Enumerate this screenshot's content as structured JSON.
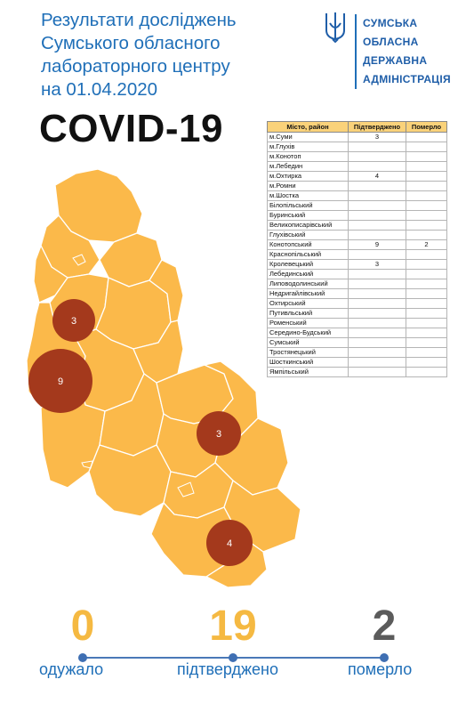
{
  "header": {
    "title_lines": [
      "Результати досліджень",
      "Сумського обласного",
      "лабораторного центру",
      "на 01.04.2020"
    ],
    "headline": "COVID-19"
  },
  "org": {
    "lines": [
      "СУМСЬКА",
      "ОБЛАСНА",
      "ДЕРЖАВНА",
      "АДМІНІСТРАЦІЯ"
    ],
    "emblem_icon": "trident-icon"
  },
  "map": {
    "fill_color": "#fbb94a",
    "marker_color": "#a4391c",
    "markers": [
      {
        "label": "3"
      },
      {
        "label": "9"
      },
      {
        "label": "3"
      },
      {
        "label": "4"
      }
    ]
  },
  "table": {
    "headers": [
      "Місто, район",
      "Підтверджено",
      "Померло"
    ],
    "rows": [
      {
        "name": "м.Суми",
        "confirmed": "3",
        "died": ""
      },
      {
        "name": "м.Глухів",
        "confirmed": "",
        "died": ""
      },
      {
        "name": "м.Конотоп",
        "confirmed": "",
        "died": ""
      },
      {
        "name": "м.Лебедин",
        "confirmed": "",
        "died": ""
      },
      {
        "name": "м.Охтирка",
        "confirmed": "4",
        "died": ""
      },
      {
        "name": "м.Ромни",
        "confirmed": "",
        "died": ""
      },
      {
        "name": "м.Шостка",
        "confirmed": "",
        "died": ""
      },
      {
        "name": "Білопільський",
        "confirmed": "",
        "died": ""
      },
      {
        "name": "Буринський",
        "confirmed": "",
        "died": ""
      },
      {
        "name": "Великописарівський",
        "confirmed": "",
        "died": ""
      },
      {
        "name": "Глухівський",
        "confirmed": "",
        "died": ""
      },
      {
        "name": "Конотопський",
        "confirmed": "9",
        "died": "2"
      },
      {
        "name": "Краснопільський",
        "confirmed": "",
        "died": ""
      },
      {
        "name": "Кролевецький",
        "confirmed": "3",
        "died": ""
      },
      {
        "name": "Лебединський",
        "confirmed": "",
        "died": ""
      },
      {
        "name": "Липоводолинський",
        "confirmed": "",
        "died": ""
      },
      {
        "name": "Недригайлівський",
        "confirmed": "",
        "died": ""
      },
      {
        "name": "Охтирський",
        "confirmed": "",
        "died": ""
      },
      {
        "name": "Путивльський",
        "confirmed": "",
        "died": ""
      },
      {
        "name": "Роменський",
        "confirmed": "",
        "died": ""
      },
      {
        "name": "Середино-Будський",
        "confirmed": "",
        "died": ""
      },
      {
        "name": "Сумський",
        "confirmed": "",
        "died": ""
      },
      {
        "name": "Тростянецький",
        "confirmed": "",
        "died": ""
      },
      {
        "name": "Шосткинський",
        "confirmed": "",
        "died": ""
      },
      {
        "name": "Ямпільський",
        "confirmed": "",
        "died": ""
      }
    ]
  },
  "stats": [
    {
      "value": "0",
      "label": "одужало",
      "color": "#f5b942"
    },
    {
      "value": "19",
      "label": "підтверджено",
      "color": "#f5b942"
    },
    {
      "value": "2",
      "label": "померло",
      "color": "#5b5b5b"
    }
  ]
}
